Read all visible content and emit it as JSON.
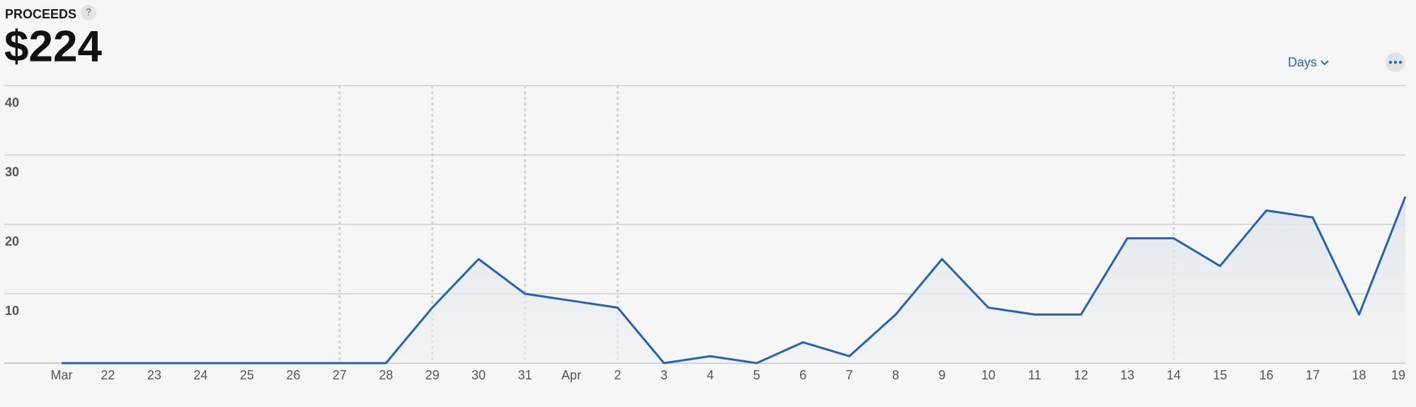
{
  "header": {
    "label": "PROCEEDS",
    "help": "?",
    "total": "$224"
  },
  "controls": {
    "period": "Days"
  },
  "chart_data": {
    "type": "line",
    "categories": [
      "Mar",
      "22",
      "23",
      "24",
      "25",
      "26",
      "27",
      "28",
      "29",
      "30",
      "31",
      "Apr",
      "2",
      "3",
      "4",
      "5",
      "6",
      "7",
      "8",
      "9",
      "10",
      "11",
      "12",
      "13",
      "14",
      "15",
      "16",
      "17",
      "18",
      "19"
    ],
    "series": [
      {
        "name": "Proceeds",
        "color": "#2563b0",
        "values": [
          0,
          0,
          0,
          0,
          0,
          0,
          0,
          0,
          8,
          15,
          10,
          9,
          8,
          0,
          1,
          0,
          3,
          1,
          7,
          15,
          8,
          7,
          7,
          18,
          18,
          14,
          22,
          21,
          7,
          24
        ]
      }
    ],
    "event_markers": [
      false,
      false,
      false,
      false,
      false,
      false,
      true,
      false,
      true,
      false,
      true,
      false,
      true,
      false,
      false,
      false,
      false,
      false,
      false,
      false,
      false,
      false,
      false,
      false,
      true,
      false,
      false,
      false,
      false,
      false
    ],
    "ylim": [
      0,
      40
    ],
    "yticks": [
      10,
      20,
      30,
      40
    ],
    "grid": true
  }
}
